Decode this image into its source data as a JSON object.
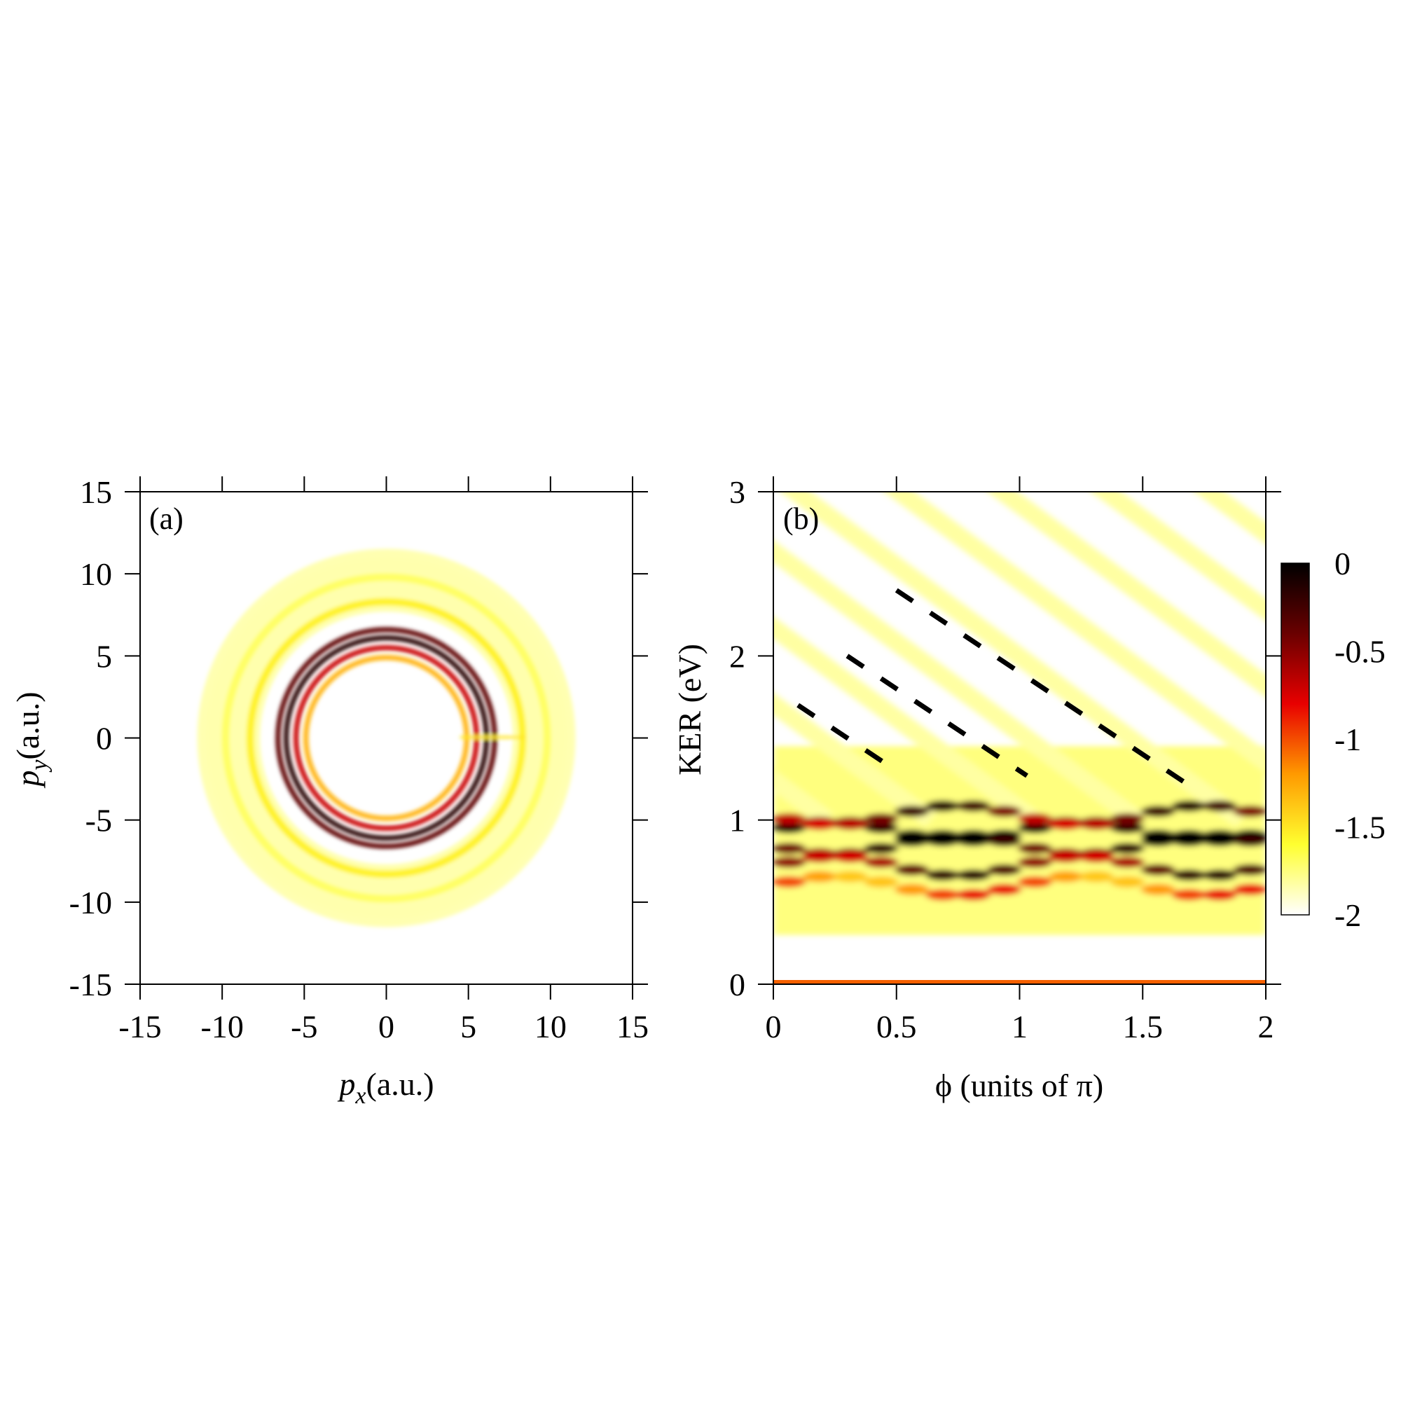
{
  "chart_data": [
    {
      "panel": "(a)",
      "type": "heatmap",
      "xlabel_var": "p",
      "xlabel_sub": "x",
      "xlabel_unit": "(a.u.)",
      "ylabel_var": "p",
      "ylabel_sub": "y",
      "ylabel_unit": "(a.u.)",
      "xlim": [
        -15,
        15
      ],
      "ylim": [
        -15,
        15
      ],
      "xticks": [
        "-15",
        "-10",
        "-5",
        "0",
        "5",
        "10",
        "15"
      ],
      "yticks": [
        "15",
        "10",
        "5",
        "0",
        "-5",
        "-10",
        "-15"
      ],
      "rings": [
        {
          "radius": 6.1,
          "level": -0.15
        },
        {
          "radius": 6.6,
          "level": -0.35
        },
        {
          "radius": 5.5,
          "level": -0.7
        },
        {
          "radius": 4.9,
          "level": -1.3
        },
        {
          "radius": 8.3,
          "level": -1.55
        },
        {
          "radius": 9.8,
          "level": -1.7
        },
        {
          "radius": 11.3,
          "level": -1.85
        }
      ],
      "grid": false
    },
    {
      "panel": "(b)",
      "type": "heatmap",
      "xlabel": "ϕ (units of π)",
      "ylabel": "KER (eV)",
      "xlim": [
        0,
        2
      ],
      "ylim": [
        0,
        3
      ],
      "xticks": [
        "0",
        "0.5",
        "1",
        "1.5",
        "2"
      ],
      "yticks": [
        "3",
        "2",
        "1",
        "0"
      ],
      "bands": [
        {
          "ker": 0.93,
          "level": -0.05,
          "slope": 0.5
        },
        {
          "ker": 0.85,
          "level": -0.2,
          "slope": -0.45
        },
        {
          "ker": 1.03,
          "level": -0.45,
          "slope": -0.45
        },
        {
          "ker": 0.72,
          "level": -0.45,
          "slope": 0.5
        },
        {
          "ker": 0.6,
          "level": -1.1,
          "slope": 0.4
        }
      ],
      "dashed_lines": [
        {
          "x": [
            0.1,
            0.5
          ],
          "y": [
            1.7,
            1.3
          ]
        },
        {
          "x": [
            0.3,
            1.03
          ],
          "y": [
            2.0,
            1.27
          ]
        },
        {
          "x": [
            0.5,
            1.72
          ],
          "y": [
            2.4,
            1.18
          ]
        }
      ],
      "colorbar": {
        "range": [
          -2,
          0
        ],
        "ticks": [
          "0",
          "-0.5",
          "-1",
          "-1.5",
          "-2"
        ],
        "colors": [
          "#ffffff",
          "#ffff30",
          "#ff9a00",
          "#e80000",
          "#6a0000",
          "#000000"
        ]
      },
      "grid": false
    }
  ]
}
